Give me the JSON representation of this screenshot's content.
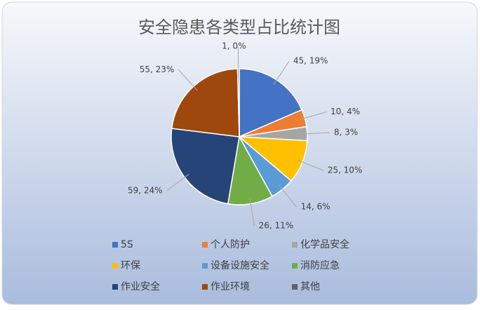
{
  "chart_data": {
    "type": "pie",
    "title": "安全隐患各类型占比统计图",
    "categories": [
      "5S",
      "个人防护",
      "化学品安全",
      "环保",
      "设备设施安全",
      "消防应急",
      "作业安全",
      "作业环境",
      "其他"
    ],
    "values": [
      45,
      10,
      8,
      25,
      14,
      26,
      59,
      55,
      1
    ],
    "value_labels": [
      "45, 19%",
      "10, 4%",
      "8, 3%",
      "25, 10%",
      "14, 6%",
      "26, 11%",
      "59, 24%",
      "55, 23%",
      "1, 0%"
    ],
    "colors": [
      "#4472c4",
      "#ed7d31",
      "#a5a5a5",
      "#ffc000",
      "#5b9bd5",
      "#70ad47",
      "#264478",
      "#9e480e",
      "#636363"
    ],
    "legend": "bottom"
  }
}
